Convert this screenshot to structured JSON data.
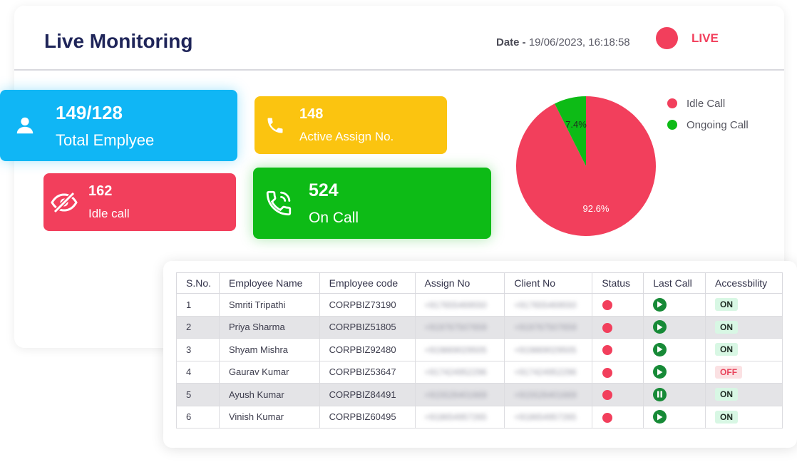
{
  "header": {
    "title": "Live Monitoring",
    "date_label": "Date - ",
    "date_value": "19/06/2023, 16:18:58",
    "live_label": "LIVE",
    "live_color": "#f23f5c"
  },
  "cards": {
    "total": {
      "value": "149/128",
      "label": "Total Emplyee",
      "color": "#10b6f5",
      "icon": "user-icon"
    },
    "active": {
      "value": "148",
      "label": "Active Assign No.",
      "color": "#fbc410",
      "icon": "phone-icon"
    },
    "idle": {
      "value": "162",
      "label": "Idle call",
      "color": "#f23f5c",
      "icon": "eye-off-icon"
    },
    "oncall": {
      "value": "524",
      "label": "On Call",
      "color": "#0dbb16",
      "icon": "phone-ringing-icon"
    }
  },
  "chart_data": {
    "type": "pie",
    "slices": [
      {
        "name": "Idle Call",
        "value": 92.6,
        "label": "92.6%",
        "color": "#f23f5c"
      },
      {
        "name": "Ongoing Call",
        "value": 7.4,
        "label": "7.4%",
        "color": "#0dbb16"
      }
    ],
    "legend_position": "top-right"
  },
  "table": {
    "headers": [
      "S.No.",
      "Employee Name",
      "Employee code",
      "Assign No",
      "Client No",
      "Status",
      "Last Call",
      "Accessbility"
    ],
    "rows": [
      {
        "sno": "1",
        "name": "Smriti Tripathi",
        "code": "CORPBIZ73190",
        "assign": "+917655469550",
        "client": "+917655469550",
        "status": "offline",
        "last_call": "play",
        "access": "ON"
      },
      {
        "sno": "2",
        "name": "Priya Sharma",
        "code": "CORPBIZ51805",
        "assign": "+919767507659",
        "client": "+919767507659",
        "status": "offline",
        "last_call": "play",
        "access": "ON"
      },
      {
        "sno": "3",
        "name": "Shyam Mishra",
        "code": "CORPBIZ92480",
        "assign": "+919869029505",
        "client": "+919869029505",
        "status": "offline",
        "last_call": "play",
        "access": "ON"
      },
      {
        "sno": "4",
        "name": "Gaurav Kumar",
        "code": "CORPBIZ53647",
        "assign": "+917424952296",
        "client": "+917424952296",
        "status": "offline",
        "last_call": "play",
        "access": "OFF"
      },
      {
        "sno": "5",
        "name": "Ayush Kumar",
        "code": "CORPBIZ84491",
        "assign": "+915526401669",
        "client": "+915526401669",
        "status": "offline",
        "last_call": "pause",
        "access": "ON"
      },
      {
        "sno": "6",
        "name": "Vinish Kumar",
        "code": "CORPBIZ60495",
        "assign": "+918654957265",
        "client": "+918654957265",
        "status": "offline",
        "last_call": "play",
        "access": "ON"
      }
    ]
  }
}
